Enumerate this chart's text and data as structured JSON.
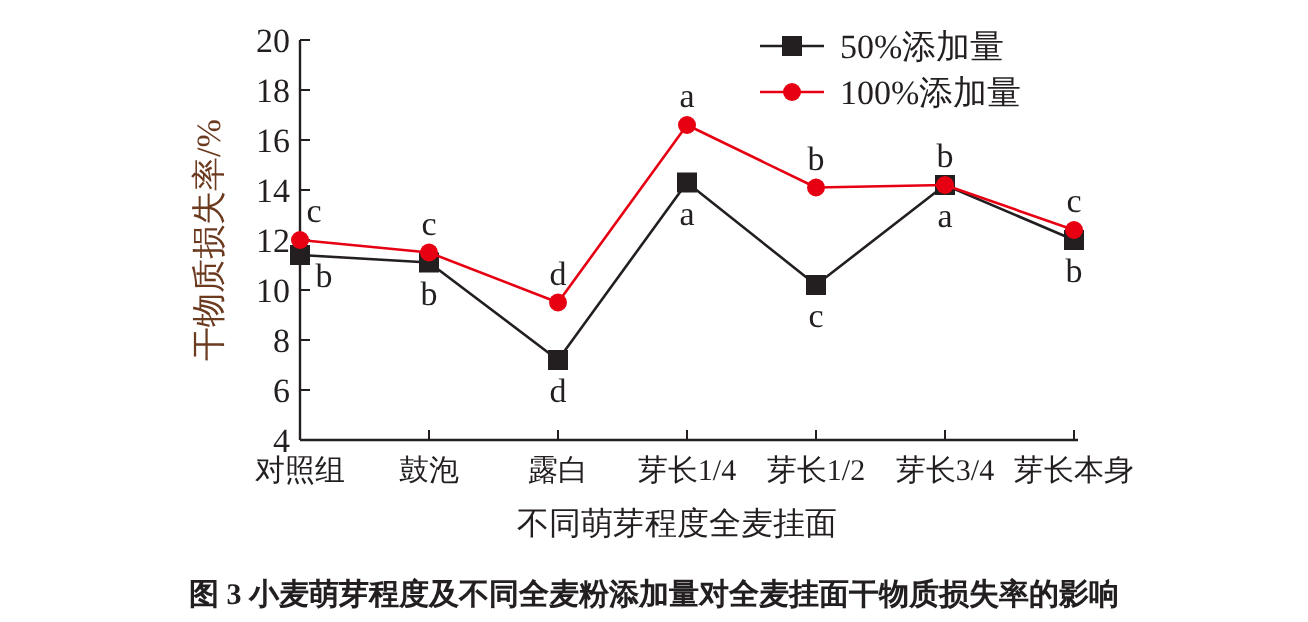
{
  "chart_data": {
    "type": "line",
    "title": "图 3    小麦萌芽程度及不同全麦粉添加量对全麦挂面干物质损失率的影响",
    "xlabel": "不同萌芽程度全麦挂面",
    "ylabel": "干物质损失率/%",
    "categories": [
      "对照组",
      "鼓泡",
      "露白",
      "芽长1/4",
      "芽长1/2",
      "芽长3/4",
      "芽长本身"
    ],
    "series": [
      {
        "name": "50%添加量",
        "color": "#231f20",
        "marker": "square",
        "values": [
          11.4,
          11.1,
          7.2,
          14.3,
          10.2,
          14.2,
          12.0
        ],
        "value_labels": [
          "b",
          "b",
          "d",
          "a",
          "c",
          "a",
          "b"
        ]
      },
      {
        "name": "100%添加量",
        "color": "#e60012",
        "marker": "circle",
        "values": [
          12.0,
          11.5,
          9.5,
          16.6,
          14.1,
          14.2,
          12.4
        ],
        "value_labels": [
          "c",
          "c",
          "d",
          "a",
          "b",
          "b",
          "c"
        ]
      }
    ],
    "ylim": [
      4,
      20
    ],
    "yticks": [
      4,
      6,
      8,
      10,
      12,
      14,
      16,
      18,
      20
    ],
    "legend": "top right",
    "grid": false
  }
}
